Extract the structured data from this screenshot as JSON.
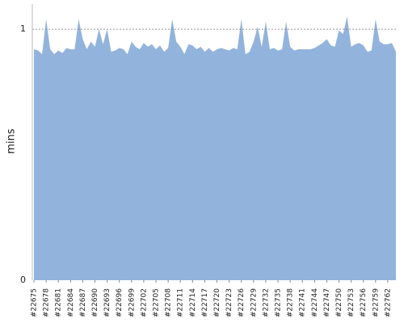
{
  "chart_data": {
    "type": "area",
    "y_label": "mins",
    "color": "#92b4dc",
    "grid": true,
    "ylim": [
      0,
      1.1
    ],
    "yticks": [
      0,
      1
    ],
    "categories": [
      "#22675",
      null,
      null,
      "#22678",
      null,
      null,
      "#22681",
      null,
      null,
      "#22684",
      null,
      null,
      "#22687",
      null,
      null,
      "#22690",
      null,
      null,
      "#22693",
      null,
      null,
      "#22696",
      null,
      null,
      "#22699",
      null,
      null,
      "#22702",
      null,
      null,
      "#22705",
      null,
      null,
      "#22708",
      null,
      null,
      "#22711",
      null,
      null,
      "#22714",
      null,
      null,
      "#22717",
      null,
      null,
      "#22720",
      null,
      null,
      "#22723",
      null,
      null,
      "#22726",
      null,
      null,
      "#22729",
      null,
      null,
      "#22732",
      null,
      null,
      "#22735",
      null,
      null,
      "#22738",
      null,
      null,
      "#22741",
      null,
      null,
      "#22744",
      null,
      null,
      "#22747",
      null,
      null,
      "#22750",
      null,
      null,
      "#22753",
      null,
      null,
      "#22756",
      null,
      null,
      "#22759",
      null,
      null,
      "#22762",
      null,
      null
    ],
    "values": [
      0.92,
      0.915,
      0.9,
      1.04,
      0.92,
      0.9,
      0.915,
      0.905,
      0.925,
      0.92,
      0.92,
      1.04,
      0.96,
      0.92,
      0.95,
      0.93,
      1.0,
      0.94,
      1.0,
      0.91,
      0.915,
      0.925,
      0.92,
      0.9,
      0.95,
      0.93,
      0.92,
      0.945,
      0.93,
      0.94,
      0.92,
      0.935,
      0.91,
      0.925,
      1.04,
      0.95,
      0.93,
      0.9,
      0.94,
      0.935,
      0.92,
      0.93,
      0.91,
      0.925,
      0.91,
      0.92,
      0.925,
      0.92,
      0.915,
      0.925,
      0.92,
      1.04,
      0.9,
      0.91,
      0.95,
      1.01,
      0.93,
      1.03,
      0.92,
      0.925,
      0.915,
      0.92,
      1.03,
      0.93,
      0.915,
      0.92,
      0.92,
      0.92,
      0.92,
      0.925,
      0.935,
      0.945,
      0.96,
      0.935,
      0.93,
      0.995,
      0.98,
      1.05,
      0.93,
      0.94,
      0.945,
      0.935,
      0.91,
      0.915,
      1.04,
      0.95,
      0.94,
      0.94,
      0.945,
      0.91
    ]
  }
}
